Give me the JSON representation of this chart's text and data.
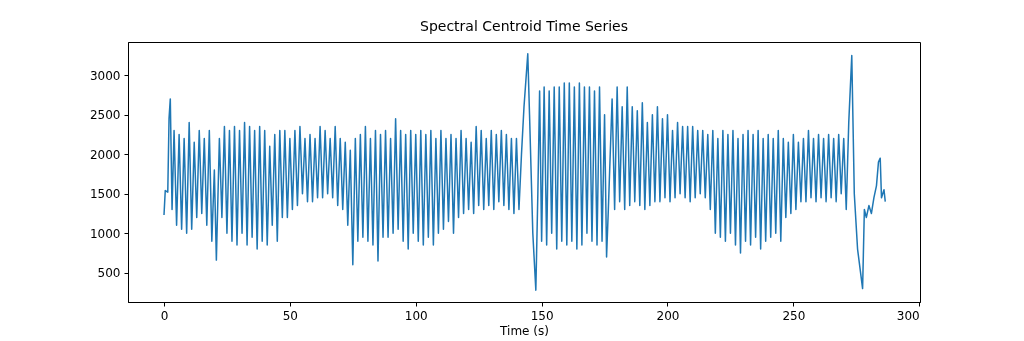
{
  "chart_data": {
    "type": "line",
    "title": "Spectral Centroid Time Series",
    "xlabel": "Time (s)",
    "xlim": [
      -14.3,
      300.3
    ],
    "ylim": [
      130,
      3420
    ],
    "xticks": [
      0,
      50,
      100,
      150,
      200,
      250,
      300
    ],
    "yticks": [
      500,
      1000,
      1500,
      2000,
      2500,
      3000
    ],
    "grid": false,
    "x": [
      0,
      0.5,
      1.5,
      2,
      2.5,
      3.2,
      4,
      5,
      6,
      7,
      8,
      9,
      10,
      11,
      12,
      13,
      14,
      15,
      16,
      17,
      18,
      19,
      20,
      20.8,
      22,
      23,
      24,
      25,
      26,
      27,
      28,
      29,
      30,
      31,
      32,
      33,
      34,
      35,
      36,
      37,
      38,
      39,
      40,
      41,
      42,
      43,
      44,
      45,
      46,
      47,
      48,
      49,
      50,
      51,
      52,
      53,
      54,
      55,
      56,
      57,
      58,
      59,
      60,
      61,
      62,
      63,
      64,
      65,
      66,
      67,
      68,
      69,
      70,
      71,
      72,
      73,
      74,
      75,
      76,
      77,
      78,
      79,
      80,
      81,
      82,
      83,
      84,
      85,
      86,
      87,
      88,
      89,
      90,
      91,
      92,
      93,
      94,
      95,
      96,
      97,
      98,
      99,
      100,
      101,
      102,
      103,
      104,
      105,
      106,
      107,
      108,
      109,
      110,
      111,
      112,
      113,
      114,
      115,
      116,
      117,
      118,
      119,
      120,
      121,
      122,
      123,
      124,
      125,
      126,
      127,
      128,
      129,
      130,
      131,
      132,
      133,
      134,
      135,
      136,
      137,
      138,
      139,
      140,
      141,
      142,
      143,
      144.5,
      145.2,
      146.5,
      147.7,
      148.5,
      149.2,
      150,
      151,
      152,
      153,
      154,
      155,
      156,
      157,
      158,
      159,
      160,
      161,
      162,
      163,
      164,
      165,
      166,
      167,
      168,
      169,
      170,
      171,
      172,
      173,
      174,
      175,
      175.8,
      176.5,
      178,
      179,
      180,
      181,
      182,
      183,
      184,
      185,
      186,
      187,
      188,
      189,
      190,
      191,
      192,
      193,
      194,
      195,
      196,
      197,
      198,
      199,
      200,
      201,
      202,
      203,
      204,
      205,
      206,
      207,
      208,
      209,
      210,
      211,
      212,
      213,
      214,
      215,
      216,
      217,
      218,
      219,
      220,
      221,
      222,
      223,
      224,
      225,
      226,
      227,
      228,
      229,
      230,
      231,
      232,
      233,
      234,
      235,
      236,
      237,
      238,
      239,
      240,
      241,
      242,
      243,
      244,
      245,
      246,
      247,
      248,
      249,
      250,
      251,
      252,
      253,
      254,
      255,
      256,
      257,
      258,
      259,
      260,
      261,
      262,
      263,
      264,
      265,
      266,
      267,
      268,
      269,
      270,
      271,
      272,
      273.2,
      274.2,
      275.5,
      277.5,
      278.2,
      279,
      280,
      281,
      282,
      283,
      283.8,
      284.5,
      285,
      286,
      286.5
    ],
    "series": [
      {
        "color": "#1f77b4",
        "values": [
          1230,
          1540,
          1520,
          2450,
          2700,
          1300,
          2300,
          1100,
          2250,
          1050,
          2200,
          1000,
          2400,
          1050,
          2150,
          1200,
          2300,
          1250,
          2200,
          1100,
          2300,
          900,
          1800,
          660,
          2200,
          1200,
          2350,
          1000,
          2300,
          900,
          2350,
          850,
          2300,
          1000,
          2400,
          850,
          2350,
          950,
          2300,
          800,
          2350,
          900,
          2300,
          850,
          2100,
          1100,
          2250,
          900,
          2300,
          1200,
          2300,
          1200,
          2200,
          1300,
          2300,
          1350,
          2350,
          1500,
          2200,
          1400,
          2250,
          1400,
          2200,
          1450,
          2350,
          1450,
          2300,
          1500,
          2200,
          1450,
          2350,
          1350,
          2200,
          1300,
          2150,
          1100,
          2050,
          600,
          2200,
          900,
          2250,
          950,
          2350,
          900,
          2200,
          850,
          2300,
          650,
          2250,
          950,
          2300,
          950,
          2200,
          1000,
          2450,
          1050,
          2300,
          900,
          2250,
          800,
          2300,
          1000,
          2250,
          900,
          2300,
          850,
          2250,
          950,
          2300,
          850,
          2200,
          1000,
          2300,
          1050,
          2200,
          1150,
          2250,
          1000,
          2200,
          1200,
          2300,
          1250,
          2200,
          1300,
          2150,
          1250,
          2350,
          1350,
          2300,
          1300,
          2200,
          1350,
          2300,
          1300,
          2250,
          1400,
          2300,
          1350,
          2250,
          1300,
          2200,
          1250,
          2200,
          1300,
          2000,
          2600,
          3270,
          2500,
          1000,
          280,
          1500,
          2800,
          900,
          2850,
          850,
          2800,
          1000,
          2850,
          800,
          2850,
          900,
          2900,
          850,
          2900,
          900,
          2850,
          800,
          2900,
          850,
          2850,
          1000,
          2850,
          900,
          2800,
          850,
          2850,
          900,
          2500,
          700,
          1300,
          2700,
          1300,
          2850,
          1400,
          2600,
          1300,
          2850,
          1350,
          2600,
          1400,
          2550,
          1350,
          2650,
          1300,
          2400,
          1350,
          2500,
          1400,
          2600,
          1400,
          2450,
          1450,
          2500,
          1400,
          2300,
          1450,
          2400,
          1500,
          2350,
          1450,
          2350,
          1400,
          2350,
          1450,
          2300,
          1500,
          2300,
          1450,
          2250,
          1300,
          2300,
          1000,
          2200,
          950,
          2300,
          900,
          2250,
          1000,
          2300,
          850,
          2200,
          750,
          2250,
          900,
          2300,
          850,
          2250,
          950,
          2300,
          800,
          2200,
          900,
          2250,
          950,
          2200,
          1000,
          2300,
          900,
          2200,
          1200,
          2150,
          1250,
          2250,
          1300,
          2150,
          1400,
          2200,
          1400,
          2300,
          1450,
          2200,
          1400,
          2250,
          1450,
          2200,
          1400,
          2250,
          1450,
          2200,
          1400,
          2250,
          1500,
          2200,
          1300,
          2400,
          3250,
          1500,
          800,
          300,
          1300,
          1200,
          1350,
          1250,
          1450,
          1600,
          1900,
          1950,
          1450,
          1550,
          1400
        ]
      }
    ]
  }
}
